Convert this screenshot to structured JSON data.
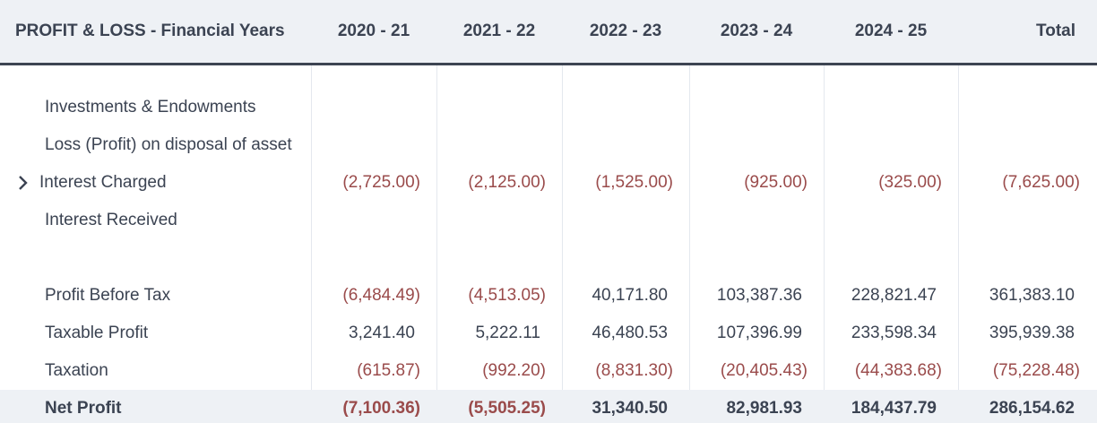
{
  "header": {
    "title": "PROFIT & LOSS - Financial Years",
    "columns": [
      "2020 - 21",
      "2021 - 22",
      "2022 - 23",
      "2023 - 24",
      "2024 - 25",
      "Total"
    ]
  },
  "groups": [
    {
      "rows": [
        {
          "label": "Investments & Endowments"
        },
        {
          "label": "Loss (Profit) on disposal of asset"
        },
        {
          "label": "Interest Charged",
          "expandable": true,
          "values": [
            "(2,725.00)",
            "(2,125.00)",
            "(1,525.00)",
            "(925.00)",
            "(325.00)",
            "(7,625.00)"
          ]
        },
        {
          "label": "Interest Received"
        }
      ]
    },
    {
      "rows": [
        {
          "label": "Profit Before Tax",
          "values": [
            "(6,484.49)",
            "(4,513.05)",
            "40,171.80",
            "103,387.36",
            "228,821.47",
            "361,383.10"
          ]
        },
        {
          "label": "Taxable Profit",
          "values": [
            "3,241.40",
            "5,222.11",
            "46,480.53",
            "107,396.99",
            "233,598.34",
            "395,939.38"
          ]
        },
        {
          "label": "Taxation",
          "values": [
            "(615.87)",
            "(992.20)",
            "(8,831.30)",
            "(20,405.43)",
            "(44,383.68)",
            "(75,228.48)"
          ]
        }
      ]
    }
  ],
  "total_row": {
    "label": "Net Profit",
    "values": [
      "(7,100.36)",
      "(5,505.25)",
      "31,340.50",
      "82,981.93",
      "184,437.79",
      "286,154.62"
    ]
  }
}
